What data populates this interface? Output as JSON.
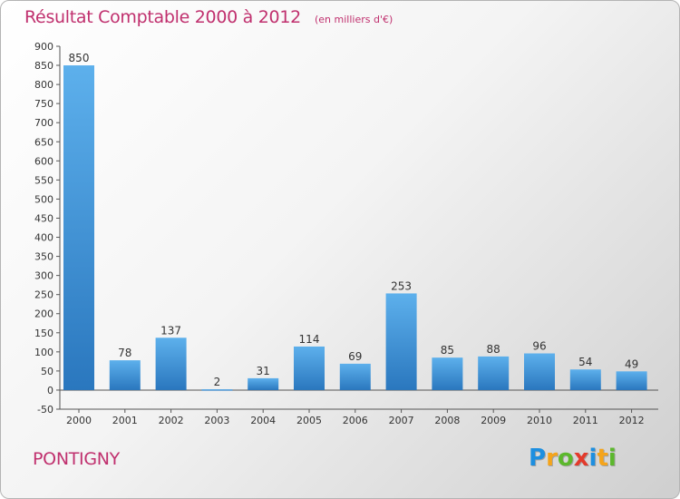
{
  "title": "Résultat Comptable 2000 à 2012",
  "unit_note": "(en milliers d'€)",
  "location": "PONTIGNY",
  "brand": {
    "letters": [
      "P",
      "r",
      "o",
      "x",
      "i",
      "t",
      "i"
    ],
    "colors": [
      "#1d8fe0",
      "#f5a41a",
      "#5cb82d",
      "#e33a2b",
      "#1d8fe0",
      "#f5a41a",
      "#5cb82d"
    ]
  },
  "colors": {
    "title": "#c0306e",
    "bar_top": "#5db0ec",
    "bar_bottom": "#2a77be",
    "axis": "#555555",
    "grid": "#d8d8d8"
  },
  "chart_data": {
    "type": "bar",
    "title": "Résultat Comptable 2000 à 2012",
    "subtitle": "(en milliers d'€)",
    "xlabel": "",
    "ylabel": "",
    "categories": [
      "2000",
      "2001",
      "2002",
      "2003",
      "2004",
      "2005",
      "2006",
      "2007",
      "2008",
      "2009",
      "2010",
      "2011",
      "2012"
    ],
    "values": [
      850,
      78,
      137,
      2,
      31,
      114,
      69,
      253,
      85,
      88,
      96,
      54,
      49
    ],
    "ylim": [
      -50,
      900
    ],
    "yticks": [
      -50,
      0,
      50,
      100,
      150,
      200,
      250,
      300,
      350,
      400,
      450,
      500,
      550,
      600,
      650,
      700,
      750,
      800,
      850,
      900
    ],
    "grid": false,
    "data_labels": true
  }
}
